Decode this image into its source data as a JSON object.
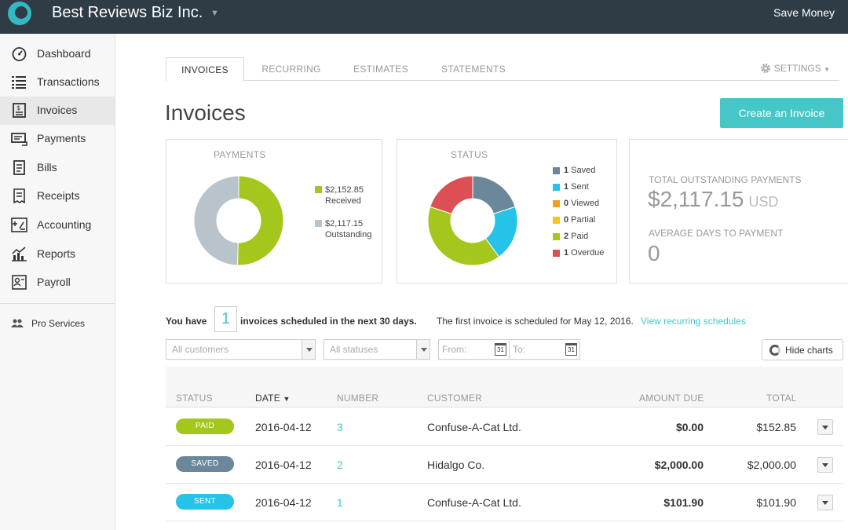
{
  "topbar": {
    "company": "Best Reviews Biz Inc.",
    "right_label": "Save Money"
  },
  "sidebar": {
    "items": [
      {
        "label": "Dashboard",
        "icon": "dashboard-icon"
      },
      {
        "label": "Transactions",
        "icon": "transactions-icon"
      },
      {
        "label": "Invoices",
        "icon": "invoices-icon",
        "active": true
      },
      {
        "label": "Payments",
        "icon": "payments-icon"
      },
      {
        "label": "Bills",
        "icon": "bills-icon"
      },
      {
        "label": "Receipts",
        "icon": "receipts-icon"
      },
      {
        "label": "Accounting",
        "icon": "accounting-icon"
      },
      {
        "label": "Reports",
        "icon": "reports-icon"
      },
      {
        "label": "Payroll",
        "icon": "payroll-icon"
      }
    ],
    "pro_services": "Pro Services"
  },
  "tabs": [
    "INVOICES",
    "RECURRING",
    "ESTIMATES",
    "STATEMENTS"
  ],
  "settings_label": "SETTINGS",
  "page_title": "Invoices",
  "create_button": "Create an Invoice",
  "payments_card": {
    "title": "PAYMENTS",
    "legend": [
      {
        "amount": "$2,152.85",
        "label": "Received",
        "color": "#a5c61c",
        "value": 2152.85
      },
      {
        "amount": "$2,117.15",
        "label": "Outstanding",
        "color": "#b8c3cb",
        "value": 2117.15
      }
    ]
  },
  "status_card": {
    "title": "STATUS",
    "legend": [
      {
        "count": "1",
        "label": "Saved",
        "color": "#6a8899",
        "value": 1
      },
      {
        "count": "1",
        "label": "Sent",
        "color": "#26c3e8",
        "value": 1
      },
      {
        "count": "0",
        "label": "Viewed",
        "color": "#f0a020",
        "value": 0
      },
      {
        "count": "0",
        "label": "Partial",
        "color": "#f2c71b",
        "value": 0
      },
      {
        "count": "2",
        "label": "Paid",
        "color": "#a5c61c",
        "value": 2
      },
      {
        "count": "1",
        "label": "Overdue",
        "color": "#dc4f55",
        "value": 1
      }
    ]
  },
  "summary_card": {
    "total_label": "TOTAL OUTSTANDING PAYMENTS",
    "total_value": "$2,117.15",
    "currency": "USD",
    "avg_label": "AVERAGE DAYS TO PAYMENT",
    "avg_value": "0"
  },
  "scheduled": {
    "prefix": "You have",
    "count": "1",
    "middle": "invoices scheduled in the next 30 days.",
    "note": "The first invoice is scheduled for May 12, 2016.",
    "link": "View recurring schedules"
  },
  "filters": {
    "customers": "All customers",
    "statuses": "All statuses",
    "from": "From:",
    "to": "To:",
    "calendar_day": "31",
    "hide_charts": "Hide charts"
  },
  "table": {
    "headers": {
      "status": "STATUS",
      "date": "DATE",
      "number": "NUMBER",
      "customer": "CUSTOMER",
      "amount_due": "AMOUNT DUE",
      "total": "TOTAL"
    },
    "rows": [
      {
        "status": "PAID",
        "status_color": "#a5c61c",
        "date": "2016-04-12",
        "number": "3",
        "customer": "Confuse-A-Cat Ltd.",
        "amount_due": "$0.00",
        "total": "$152.85"
      },
      {
        "status": "SAVED",
        "status_color": "#6a8899",
        "date": "2016-04-12",
        "number": "2",
        "customer": "Hidalgo Co.",
        "amount_due": "$2,000.00",
        "total": "$2,000.00"
      },
      {
        "status": "SENT",
        "status_color": "#26c3e8",
        "date": "2016-04-12",
        "number": "1",
        "customer": "Confuse-A-Cat Ltd.",
        "amount_due": "$101.90",
        "total": "$101.90"
      }
    ]
  }
}
